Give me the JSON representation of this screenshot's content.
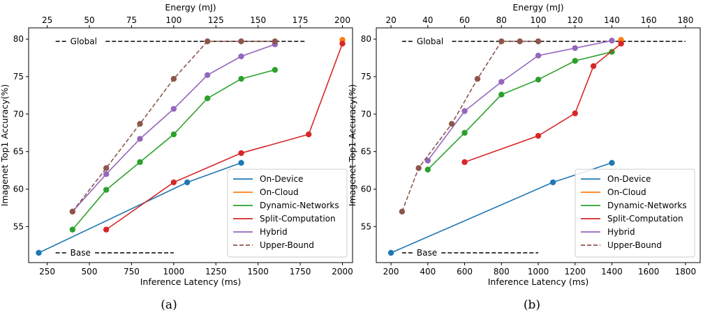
{
  "chart_data": [
    {
      "panel": "a",
      "caption": "(a)",
      "type": "line",
      "xlabel": "Inference Latency (ms)",
      "ylabel": "Imagenet Top1 Accuracy(%)",
      "x2label": "Energy (mJ)",
      "xlim": [
        140,
        2060
      ],
      "ylim": [
        50.2,
        81.5
      ],
      "xticks": [
        250,
        500,
        750,
        1000,
        1250,
        1500,
        1750,
        2000
      ],
      "yticks": [
        55,
        60,
        65,
        70,
        75,
        80
      ],
      "x2ticks": [
        25,
        50,
        75,
        100,
        125,
        150,
        175,
        200
      ],
      "x2_per_x": 0.1,
      "grid": false,
      "legend_position": "lower-right",
      "series": [
        {
          "name": "On-Device",
          "color": "#1f77b4",
          "dashed": false,
          "points": [
            [
              200,
              51.5
            ],
            [
              1080,
              60.9
            ],
            [
              1400,
              63.5
            ]
          ]
        },
        {
          "name": "On-Cloud",
          "color": "#ff7f0e",
          "dashed": false,
          "points": [
            [
              2000,
              79.9
            ]
          ]
        },
        {
          "name": "Dynamic-Networks",
          "color": "#2ca02c",
          "dashed": false,
          "points": [
            [
              400,
              54.6
            ],
            [
              600,
              59.9
            ],
            [
              800,
              63.6
            ],
            [
              1000,
              67.3
            ],
            [
              1200,
              72.1
            ],
            [
              1400,
              74.7
            ],
            [
              1600,
              75.9
            ]
          ]
        },
        {
          "name": "Split-Computation",
          "color": "#d62728",
          "dashed": false,
          "points": [
            [
              600,
              54.6
            ],
            [
              1000,
              60.9
            ],
            [
              1400,
              64.8
            ],
            [
              1800,
              67.3
            ],
            [
              2000,
              79.4
            ]
          ]
        },
        {
          "name": "Hybrid",
          "color": "#9467bd",
          "dashed": false,
          "points": [
            [
              400,
              57.0
            ],
            [
              600,
              62.0
            ],
            [
              800,
              66.7
            ],
            [
              1000,
              70.7
            ],
            [
              1200,
              75.2
            ],
            [
              1400,
              77.7
            ],
            [
              1600,
              79.3
            ]
          ]
        },
        {
          "name": "Upper-Bound",
          "color": "#8c564b",
          "dashed": true,
          "points": [
            [
              400,
              57.0
            ],
            [
              600,
              62.8
            ],
            [
              800,
              68.7
            ],
            [
              1000,
              74.7
            ],
            [
              1200,
              79.7
            ],
            [
              1400,
              79.7
            ],
            [
              1600,
              79.7
            ]
          ]
        }
      ],
      "reference_lines": [
        {
          "label": "Global",
          "y": 79.7,
          "x_start": 300,
          "x_end": 1780
        },
        {
          "label": "Base",
          "y": 51.5,
          "x_start": 300,
          "x_end": 1000
        }
      ]
    },
    {
      "panel": "b",
      "caption": "(b)",
      "type": "line",
      "xlabel": "Inference Latency (ms)",
      "ylabel": "Imagenet Top1 Accuracy(%)",
      "x2label": "Energy (mJ)",
      "xlim": [
        120,
        1880
      ],
      "ylim": [
        50.2,
        81.5
      ],
      "xticks": [
        200,
        400,
        600,
        800,
        1000,
        1200,
        1400,
        1600,
        1800
      ],
      "yticks": [
        55,
        60,
        65,
        70,
        75,
        80
      ],
      "x2ticks": [
        20,
        40,
        60,
        80,
        100,
        120,
        140,
        160,
        180
      ],
      "x2_per_x": 0.1,
      "grid": false,
      "legend_position": "lower-right",
      "series": [
        {
          "name": "On-Device",
          "color": "#1f77b4",
          "dashed": false,
          "points": [
            [
              200,
              51.5
            ],
            [
              1080,
              60.9
            ],
            [
              1400,
              63.5
            ]
          ]
        },
        {
          "name": "On-Cloud",
          "color": "#ff7f0e",
          "dashed": false,
          "points": [
            [
              1450,
              79.9
            ]
          ]
        },
        {
          "name": "Dynamic-Networks",
          "color": "#2ca02c",
          "dashed": false,
          "points": [
            [
              400,
              62.6
            ],
            [
              600,
              67.5
            ],
            [
              800,
              72.6
            ],
            [
              1000,
              74.6
            ],
            [
              1200,
              77.1
            ],
            [
              1400,
              78.3
            ]
          ]
        },
        {
          "name": "Split-Computation",
          "color": "#d62728",
          "dashed": false,
          "points": [
            [
              600,
              63.6
            ],
            [
              1000,
              67.1
            ],
            [
              1200,
              70.1
            ],
            [
              1300,
              76.4
            ],
            [
              1450,
              79.4
            ]
          ]
        },
        {
          "name": "Hybrid",
          "color": "#9467bd",
          "dashed": false,
          "points": [
            [
              400,
              63.8
            ],
            [
              600,
              70.4
            ],
            [
              800,
              74.3
            ],
            [
              1000,
              77.8
            ],
            [
              1200,
              78.8
            ],
            [
              1400,
              79.8
            ]
          ]
        },
        {
          "name": "Upper-Bound",
          "color": "#8c564b",
          "dashed": true,
          "points": [
            [
              260,
              57.0
            ],
            [
              350,
              62.8
            ],
            [
              530,
              68.7
            ],
            [
              670,
              74.7
            ],
            [
              800,
              79.7
            ],
            [
              900,
              79.7
            ],
            [
              1000,
              79.7
            ]
          ]
        }
      ],
      "reference_lines": [
        {
          "label": "Global",
          "y": 79.7,
          "x_start": 260,
          "x_end": 1800
        },
        {
          "label": "Base",
          "y": 51.5,
          "x_start": 260,
          "x_end": 1000
        }
      ]
    }
  ]
}
